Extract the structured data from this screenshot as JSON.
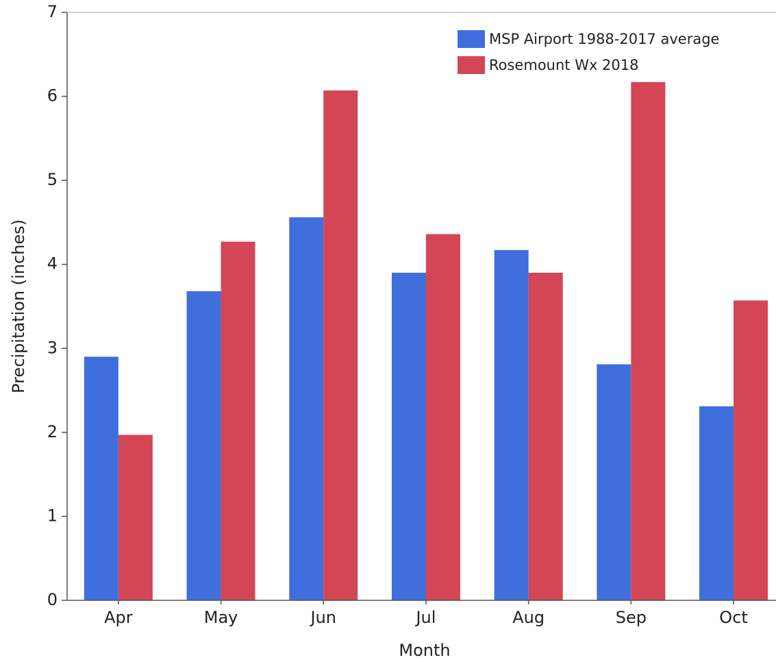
{
  "chart_data": {
    "type": "bar",
    "x_label": "Month",
    "y_label": "Precipitation (inches)",
    "categories": [
      "Apr",
      "May",
      "Jun",
      "Jul",
      "Aug",
      "Sep",
      "Oct"
    ],
    "series": [
      {
        "name": "MSP Airport 1988-2017 average",
        "color": "#3f6fdd",
        "values": [
          2.9,
          3.68,
          4.56,
          3.9,
          4.17,
          2.81,
          2.31
        ]
      },
      {
        "name": "Rosemount Wx 2018",
        "color": "#d44556",
        "values": [
          1.97,
          4.27,
          6.07,
          4.36,
          3.9,
          6.17,
          3.57
        ]
      }
    ],
    "ylim": [
      0,
      7
    ],
    "yticks": [
      0,
      1,
      2,
      3,
      4,
      5,
      6,
      7
    ],
    "grid": false,
    "legend": "upper right"
  }
}
